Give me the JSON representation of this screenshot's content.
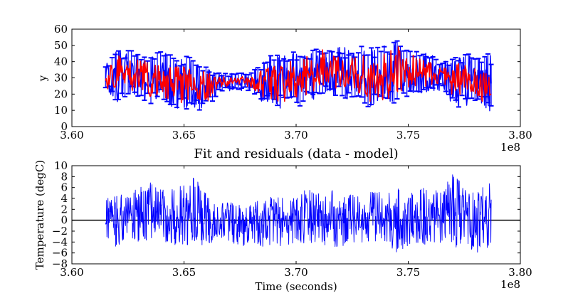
{
  "chart_data": [
    {
      "type": "line",
      "title": "",
      "xlabel": "",
      "ylabel": "y",
      "x_offset_label": "1e8",
      "xlim": [
        3.6,
        3.8
      ],
      "ylim": [
        0,
        60
      ],
      "x_ticks": [
        "3.60",
        "3.65",
        "3.70",
        "3.75",
        "3.80"
      ],
      "y_ticks": [
        "0",
        "10",
        "20",
        "30",
        "40",
        "50",
        "60"
      ],
      "x_range": [
        3.615,
        3.787
      ],
      "colors": {
        "data": "#0000ff",
        "model": "#ff0000"
      },
      "series": [
        {
          "name": "",
          "kind": "data with error bars",
          "color": "#0000ff",
          "envelope": [
            {
              "x": 3.615,
              "min": 22,
              "max": 38
            },
            {
              "x": 3.62,
              "min": 15,
              "max": 48
            },
            {
              "x": 3.625,
              "min": 17,
              "max": 47
            },
            {
              "x": 3.63,
              "min": 18,
              "max": 47
            },
            {
              "x": 3.635,
              "min": 14,
              "max": 46
            },
            {
              "x": 3.64,
              "min": 16,
              "max": 46
            },
            {
              "x": 3.645,
              "min": 12,
              "max": 44
            },
            {
              "x": 3.65,
              "min": 10,
              "max": 44
            },
            {
              "x": 3.655,
              "min": 10,
              "max": 42
            },
            {
              "x": 3.66,
              "min": 10,
              "max": 38
            },
            {
              "x": 3.665,
              "min": 20,
              "max": 33
            },
            {
              "x": 3.67,
              "min": 22,
              "max": 33
            },
            {
              "x": 3.675,
              "min": 22,
              "max": 33
            },
            {
              "x": 3.68,
              "min": 22,
              "max": 33
            },
            {
              "x": 3.685,
              "min": 15,
              "max": 40
            },
            {
              "x": 3.69,
              "min": 12,
              "max": 45
            },
            {
              "x": 3.695,
              "min": 10,
              "max": 47
            },
            {
              "x": 3.7,
              "min": 12,
              "max": 47
            },
            {
              "x": 3.705,
              "min": 14,
              "max": 48
            },
            {
              "x": 3.71,
              "min": 18,
              "max": 49
            },
            {
              "x": 3.715,
              "min": 20,
              "max": 48
            },
            {
              "x": 3.72,
              "min": 17,
              "max": 49
            },
            {
              "x": 3.725,
              "min": 16,
              "max": 48
            },
            {
              "x": 3.73,
              "min": 12,
              "max": 50
            },
            {
              "x": 3.735,
              "min": 12,
              "max": 50
            },
            {
              "x": 3.74,
              "min": 10,
              "max": 51
            },
            {
              "x": 3.745,
              "min": 16,
              "max": 53
            },
            {
              "x": 3.75,
              "min": 18,
              "max": 50
            },
            {
              "x": 3.755,
              "min": 20,
              "max": 47
            },
            {
              "x": 3.76,
              "min": 22,
              "max": 45
            },
            {
              "x": 3.765,
              "min": 22,
              "max": 40
            },
            {
              "x": 3.77,
              "min": 12,
              "max": 42
            },
            {
              "x": 3.775,
              "min": 12,
              "max": 45
            },
            {
              "x": 3.78,
              "min": 15,
              "max": 45
            },
            {
              "x": 3.787,
              "min": 9,
              "max": 45
            }
          ]
        },
        {
          "name": "",
          "kind": "model",
          "color": "#ff0000",
          "envelope": [
            {
              "x": 3.615,
              "min": 24,
              "max": 36
            },
            {
              "x": 3.62,
              "min": 20,
              "max": 44
            },
            {
              "x": 3.625,
              "min": 22,
              "max": 42
            },
            {
              "x": 3.63,
              "min": 22,
              "max": 42
            },
            {
              "x": 3.635,
              "min": 18,
              "max": 40
            },
            {
              "x": 3.64,
              "min": 20,
              "max": 40
            },
            {
              "x": 3.645,
              "min": 13,
              "max": 39
            },
            {
              "x": 3.65,
              "min": 15,
              "max": 38
            },
            {
              "x": 3.655,
              "min": 18,
              "max": 36
            },
            {
              "x": 3.66,
              "min": 14,
              "max": 34
            },
            {
              "x": 3.665,
              "min": 24,
              "max": 31
            },
            {
              "x": 3.67,
              "min": 24,
              "max": 31
            },
            {
              "x": 3.675,
              "min": 24,
              "max": 31
            },
            {
              "x": 3.68,
              "min": 24,
              "max": 31
            },
            {
              "x": 3.685,
              "min": 18,
              "max": 36
            },
            {
              "x": 3.69,
              "min": 16,
              "max": 40
            },
            {
              "x": 3.695,
              "min": 15,
              "max": 42
            },
            {
              "x": 3.7,
              "min": 16,
              "max": 42
            },
            {
              "x": 3.705,
              "min": 18,
              "max": 44
            },
            {
              "x": 3.71,
              "min": 22,
              "max": 50
            },
            {
              "x": 3.715,
              "min": 24,
              "max": 44
            },
            {
              "x": 3.72,
              "min": 20,
              "max": 46
            },
            {
              "x": 3.725,
              "min": 20,
              "max": 44
            },
            {
              "x": 3.73,
              "min": 16,
              "max": 46
            },
            {
              "x": 3.735,
              "min": 15,
              "max": 47
            },
            {
              "x": 3.74,
              "min": 16,
              "max": 46
            },
            {
              "x": 3.745,
              "min": 20,
              "max": 50
            },
            {
              "x": 3.75,
              "min": 22,
              "max": 46
            },
            {
              "x": 3.755,
              "min": 24,
              "max": 42
            },
            {
              "x": 3.76,
              "min": 25,
              "max": 40
            },
            {
              "x": 3.765,
              "min": 24,
              "max": 36
            },
            {
              "x": 3.77,
              "min": 18,
              "max": 38
            },
            {
              "x": 3.775,
              "min": 18,
              "max": 40
            },
            {
              "x": 3.78,
              "min": 18,
              "max": 40
            },
            {
              "x": 3.787,
              "min": 12,
              "max": 30
            }
          ]
        }
      ]
    },
    {
      "type": "line",
      "title": "Fit and residuals (data - model)",
      "xlabel": "Time (seconds)",
      "ylabel": "Temperature (degC)",
      "x_offset_label": "1e8",
      "xlim": [
        3.6,
        3.8
      ],
      "ylim": [
        -8,
        10
      ],
      "x_ticks": [
        "3.60",
        "3.65",
        "3.70",
        "3.75",
        "3.80"
      ],
      "y_ticks": [
        "−8",
        "−6",
        "−4",
        "−2",
        "0",
        "2",
        "4",
        "6",
        "8",
        "10"
      ],
      "x_range": [
        3.615,
        3.787
      ],
      "zero_line": 0,
      "series": [
        {
          "name": "",
          "kind": "residuals",
          "color": "#0000ff",
          "envelope": [
            {
              "x": 3.615,
              "min": -3,
              "max": 4
            },
            {
              "x": 3.62,
              "min": -5,
              "max": 5
            },
            {
              "x": 3.625,
              "min": -4,
              "max": 5
            },
            {
              "x": 3.63,
              "min": -5,
              "max": 6
            },
            {
              "x": 3.635,
              "min": -4,
              "max": 7
            },
            {
              "x": 3.64,
              "min": -4,
              "max": 6
            },
            {
              "x": 3.645,
              "min": -5,
              "max": 6
            },
            {
              "x": 3.65,
              "min": -5,
              "max": 7
            },
            {
              "x": 3.655,
              "min": -4,
              "max": 8
            },
            {
              "x": 3.66,
              "min": -5,
              "max": 5
            },
            {
              "x": 3.665,
              "min": -3,
              "max": 3
            },
            {
              "x": 3.67,
              "min": -4,
              "max": 4
            },
            {
              "x": 3.675,
              "min": -5,
              "max": 3
            },
            {
              "x": 3.68,
              "min": -4,
              "max": 3
            },
            {
              "x": 3.685,
              "min": -5,
              "max": 4
            },
            {
              "x": 3.69,
              "min": -5,
              "max": 5
            },
            {
              "x": 3.695,
              "min": -5,
              "max": 4
            },
            {
              "x": 3.7,
              "min": -4,
              "max": 4
            },
            {
              "x": 3.705,
              "min": -5,
              "max": 6
            },
            {
              "x": 3.71,
              "min": -4,
              "max": 5
            },
            {
              "x": 3.715,
              "min": -5,
              "max": 6
            },
            {
              "x": 3.72,
              "min": -5,
              "max": 4
            },
            {
              "x": 3.725,
              "min": -4,
              "max": 5
            },
            {
              "x": 3.73,
              "min": -5,
              "max": 4
            },
            {
              "x": 3.735,
              "min": -5,
              "max": 6
            },
            {
              "x": 3.74,
              "min": -4,
              "max": 5
            },
            {
              "x": 3.745,
              "min": -6,
              "max": 6
            },
            {
              "x": 3.75,
              "min": -5,
              "max": 5
            },
            {
              "x": 3.755,
              "min": -4,
              "max": 6
            },
            {
              "x": 3.76,
              "min": -5,
              "max": 6
            },
            {
              "x": 3.765,
              "min": -4,
              "max": 5
            },
            {
              "x": 3.77,
              "min": -5,
              "max": 9
            },
            {
              "x": 3.775,
              "min": -5,
              "max": 7
            },
            {
              "x": 3.78,
              "min": -6,
              "max": 6
            },
            {
              "x": 3.787,
              "min": -5,
              "max": 7
            }
          ]
        }
      ]
    }
  ]
}
